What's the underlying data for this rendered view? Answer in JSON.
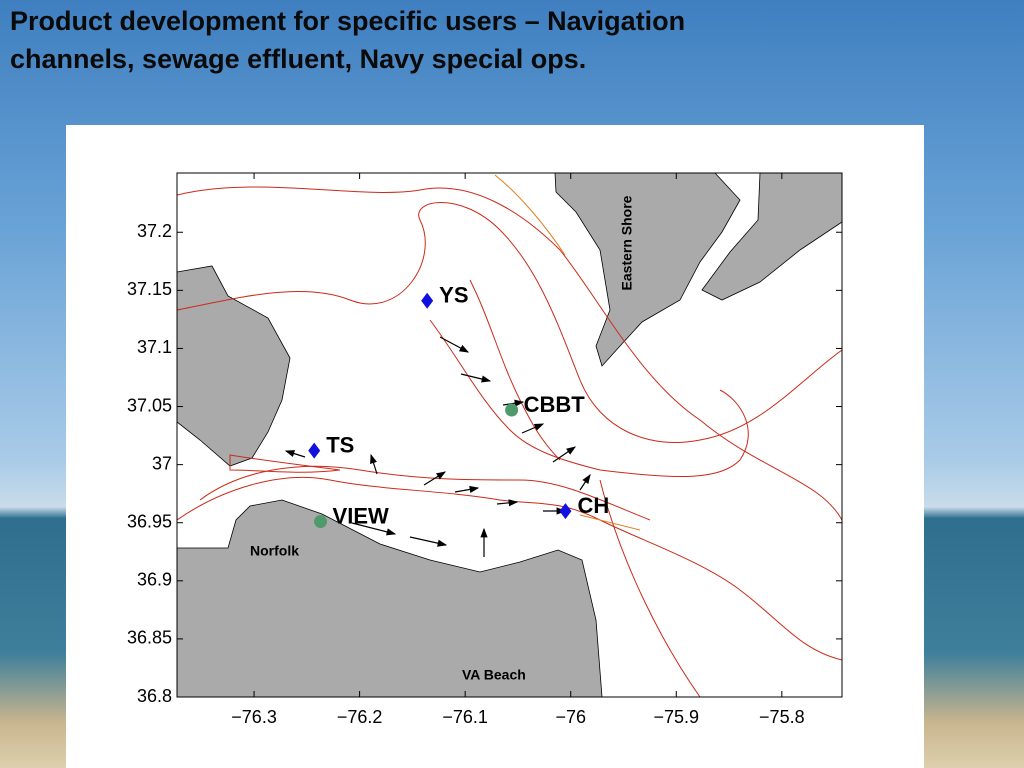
{
  "slide": {
    "title_lines": [
      "Product development for specific users – Navigation",
      "channels, sewage effluent, Navy special ops."
    ]
  },
  "map": {
    "xlim": [
      -76.373,
      -75.743
    ],
    "ylim": [
      36.8,
      37.251
    ],
    "xticks": [
      {
        "value": -76.3,
        "label": "−76.3"
      },
      {
        "value": -76.2,
        "label": "−76.2"
      },
      {
        "value": -76.1,
        "label": "−76.1"
      },
      {
        "value": -76,
        "label": "−76"
      },
      {
        "value": -75.9,
        "label": "−75.9"
      },
      {
        "value": -75.8,
        "label": "−75.8"
      }
    ],
    "yticks": [
      {
        "value": 36.8,
        "label": "36.8"
      },
      {
        "value": 36.85,
        "label": "36.85"
      },
      {
        "value": 36.9,
        "label": "36.9"
      },
      {
        "value": 36.95,
        "label": "36.95"
      },
      {
        "value": 37,
        "label": "37"
      },
      {
        "value": 37.05,
        "label": "37.05"
      },
      {
        "value": 37.1,
        "label": "37.1"
      },
      {
        "value": 37.15,
        "label": "37.15"
      },
      {
        "value": 37.2,
        "label": "37.2"
      }
    ],
    "stations": [
      {
        "label": "YS",
        "lon": -76.136,
        "lat": 37.141,
        "marker": "diamond",
        "color": "#1010e0"
      },
      {
        "label": "CBBT",
        "lon": -76.056,
        "lat": 37.047,
        "marker": "circle",
        "color": "#4f9a6a"
      },
      {
        "label": "TS",
        "lon": -76.243,
        "lat": 37.012,
        "marker": "diamond",
        "color": "#1010e0"
      },
      {
        "label": "VIEW",
        "lon": -76.237,
        "lat": 36.951,
        "marker": "circle",
        "color": "#4f9a6a"
      },
      {
        "label": "CH",
        "lon": -76.005,
        "lat": 36.96,
        "marker": "diamond",
        "color": "#1010e0"
      }
    ],
    "places": {
      "eastern_shore": "Eastern Shore",
      "norfolk": "Norfolk",
      "va_beach": "VA Beach"
    }
  }
}
